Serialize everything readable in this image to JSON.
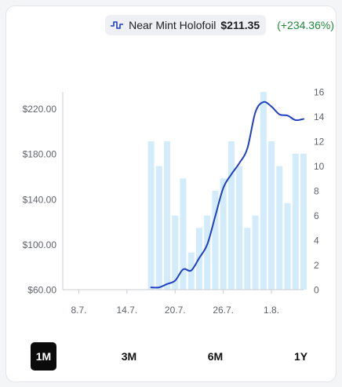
{
  "legend": {
    "icon": "line-chart-icon",
    "name": "Near Mint Holofoil",
    "price": "$211.35",
    "change": "(+234.36%)",
    "color": "#1f3fc4"
  },
  "tabs": [
    {
      "label": "1M",
      "active": true
    },
    {
      "label": "3M",
      "active": false
    },
    {
      "label": "6M",
      "active": false
    },
    {
      "label": "1Y",
      "active": false
    }
  ],
  "chart_data": {
    "type": "line",
    "x_ticks": [
      "8.7.",
      "14.7.",
      "20.7.",
      "26.7.",
      "1.8."
    ],
    "x_range": [
      "2024-07-06",
      "2024-08-05"
    ],
    "y_left": {
      "ticks": [
        "$60.00",
        "$100.00",
        "$140.00",
        "$180.00",
        "$220.00"
      ],
      "range": [
        60,
        235
      ]
    },
    "y_right": {
      "ticks": [
        "0",
        "2",
        "4",
        "6",
        "8",
        "10",
        "12",
        "14",
        "16"
      ],
      "range": [
        0,
        16
      ]
    },
    "grid": false,
    "bar_color": "#d3ecfb",
    "line_color": "#1f3fc4",
    "bars": {
      "dates": [
        "2024-07-17",
        "2024-07-18",
        "2024-07-19",
        "2024-07-20",
        "2024-07-21",
        "2024-07-22",
        "2024-07-23",
        "2024-07-24",
        "2024-07-25",
        "2024-07-26",
        "2024-07-27",
        "2024-07-28",
        "2024-07-29",
        "2024-07-30",
        "2024-07-31",
        "2024-08-01",
        "2024-08-02",
        "2024-08-03",
        "2024-08-04",
        "2024-08-05"
      ],
      "values": [
        12,
        10,
        12,
        6,
        9,
        3,
        5,
        6,
        8,
        9,
        12,
        10,
        5,
        6,
        16,
        12,
        10,
        7,
        11,
        11
      ]
    },
    "line": {
      "dates": [
        "2024-07-17",
        "2024-07-18",
        "2024-07-19",
        "2024-07-20",
        "2024-07-21",
        "2024-07-22",
        "2024-07-23",
        "2024-07-24",
        "2024-07-25",
        "2024-07-26",
        "2024-07-27",
        "2024-07-28",
        "2024-07-29",
        "2024-07-30",
        "2024-07-31",
        "2024-08-01",
        "2024-08-02",
        "2024-08-03",
        "2024-08-04",
        "2024-08-05"
      ],
      "values": [
        62,
        62,
        65,
        68,
        78,
        77,
        88,
        100,
        125,
        150,
        162,
        172,
        185,
        217,
        226,
        222,
        215,
        214,
        210,
        211
      ]
    }
  }
}
